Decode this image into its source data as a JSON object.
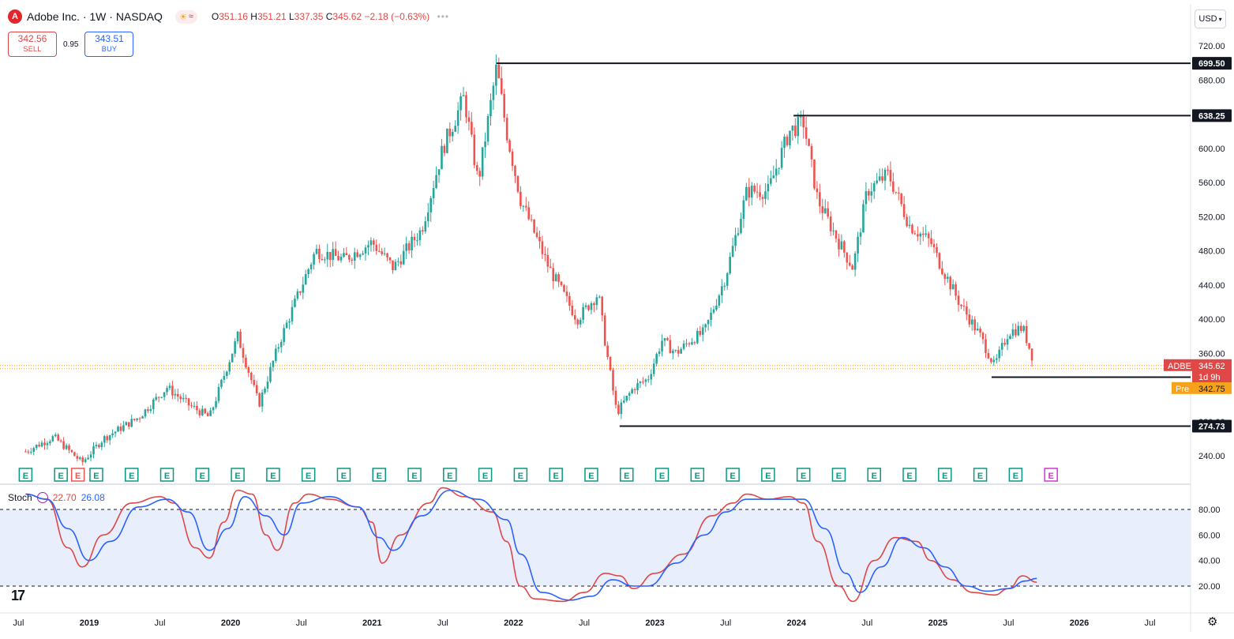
{
  "header": {
    "logo_letter": "A",
    "title": "Adobe Inc. · 1W · NASDAQ",
    "ohlc": {
      "o_label": "O",
      "o": "351.16",
      "h_label": "H",
      "h": "351.21",
      "l_label": "L",
      "l": "337.35",
      "c_label": "C",
      "c": "345.62",
      "change": "−2.18 (−0.63%)"
    }
  },
  "trade": {
    "sell_price": "342.56",
    "sell_label": "SELL",
    "spread": "0.95",
    "buy_price": "343.51",
    "buy_label": "BUY"
  },
  "currency": "USD",
  "stoch": {
    "name": "Stoch",
    "k": "22.70",
    "d": "26.08"
  },
  "colors": {
    "up": "#26a69a",
    "down": "#ef5350",
    "stoch_k": "#e04848",
    "stoch_d": "#2962ff",
    "band": "#e9eefc",
    "earnings": "#089981",
    "earnings_future": "#d633d6",
    "price_label": "#e04848",
    "pre_label": "#f7a21b"
  },
  "icons": {
    "earnings": "E",
    "logo": "tv-logo-icon",
    "settings": "gear-icon"
  },
  "chart_data": {
    "type": "candlestick",
    "title": "Adobe Inc. · 1W · NASDAQ",
    "price_axis": {
      "min": 220,
      "max": 730,
      "ticks": [
        240,
        280,
        320,
        360,
        400,
        440,
        480,
        520,
        560,
        600,
        640,
        680,
        720
      ]
    },
    "x_axis": {
      "start_year": 2018.55,
      "end_year": 2026.55,
      "labels": [
        {
          "t": 2018.5,
          "text": "Jul"
        },
        {
          "t": 2019.0,
          "text": "2019"
        },
        {
          "t": 2019.5,
          "text": "Jul"
        },
        {
          "t": 2020.0,
          "text": "2020"
        },
        {
          "t": 2020.5,
          "text": "Jul"
        },
        {
          "t": 2021.0,
          "text": "2021"
        },
        {
          "t": 2021.5,
          "text": "Jul"
        },
        {
          "t": 2022.0,
          "text": "2022"
        },
        {
          "t": 2022.5,
          "text": "Jul"
        },
        {
          "t": 2023.0,
          "text": "2023"
        },
        {
          "t": 2023.5,
          "text": "Jul"
        },
        {
          "t": 2024.0,
          "text": "2024"
        },
        {
          "t": 2024.5,
          "text": "Jul"
        },
        {
          "t": 2025.0,
          "text": "2025"
        },
        {
          "t": 2025.5,
          "text": "Jul"
        },
        {
          "t": 2026.0,
          "text": "2026"
        },
        {
          "t": 2026.5,
          "text": "Jul"
        }
      ]
    },
    "price_path": [
      [
        2018.55,
        245
      ],
      [
        2018.75,
        262
      ],
      [
        2018.95,
        232
      ],
      [
        2019.1,
        260
      ],
      [
        2019.35,
        285
      ],
      [
        2019.55,
        320
      ],
      [
        2019.7,
        300
      ],
      [
        2019.85,
        285
      ],
      [
        2020.05,
        380
      ],
      [
        2020.2,
        300
      ],
      [
        2020.35,
        375
      ],
      [
        2020.6,
        480
      ],
      [
        2020.8,
        470
      ],
      [
        2021.0,
        490
      ],
      [
        2021.15,
        460
      ],
      [
        2021.35,
        505
      ],
      [
        2021.5,
        600
      ],
      [
        2021.65,
        660
      ],
      [
        2021.75,
        560
      ],
      [
        2021.88,
        695
      ],
      [
        2021.95,
        620
      ],
      [
        2022.05,
        540
      ],
      [
        2022.25,
        460
      ],
      [
        2022.45,
        400
      ],
      [
        2022.6,
        430
      ],
      [
        2022.65,
        370
      ],
      [
        2022.73,
        290
      ],
      [
        2022.85,
        320
      ],
      [
        2022.95,
        330
      ],
      [
        2023.05,
        375
      ],
      [
        2023.15,
        360
      ],
      [
        2023.25,
        375
      ],
      [
        2023.35,
        385
      ],
      [
        2023.5,
        450
      ],
      [
        2023.65,
        550
      ],
      [
        2023.8,
        550
      ],
      [
        2023.95,
        620
      ],
      [
        2024.05,
        630
      ],
      [
        2024.15,
        540
      ],
      [
        2024.3,
        490
      ],
      [
        2024.4,
        460
      ],
      [
        2024.5,
        550
      ],
      [
        2024.65,
        570
      ],
      [
        2024.8,
        510
      ],
      [
        2024.95,
        490
      ],
      [
        2025.0,
        470
      ],
      [
        2025.15,
        420
      ],
      [
        2025.3,
        380
      ],
      [
        2025.4,
        345
      ],
      [
        2025.5,
        385
      ],
      [
        2025.6,
        390
      ],
      [
        2025.68,
        350
      ]
    ],
    "ohlc_last": {
      "open": 351.16,
      "high": 351.21,
      "low": 337.35,
      "close": 345.62,
      "change": -2.18,
      "change_pct": -0.63
    },
    "horizontal_levels": [
      {
        "price": 699.5,
        "label": "699.50",
        "start": 2021.88
      },
      {
        "price": 638.25,
        "label": "638.25",
        "start": 2023.98
      },
      {
        "price": 332.01,
        "label": "332.01",
        "start": 2025.38
      },
      {
        "price": 274.73,
        "label": "274.73",
        "start": 2022.75
      }
    ],
    "price_labels": {
      "symbol": "ADBE",
      "last": "345.62",
      "countdown": "1d 9h",
      "pre_tag": "Pre",
      "pre_value": "342.75"
    },
    "earnings_markers": [
      2018.55,
      2018.8,
      2019.05,
      2019.3,
      2019.55,
      2019.8,
      2020.05,
      2020.3,
      2020.55,
      2020.8,
      2021.05,
      2021.3,
      2021.55,
      2021.8,
      2022.05,
      2022.3,
      2022.55,
      2022.8,
      2023.05,
      2023.3,
      2023.55,
      2023.8,
      2024.05,
      2024.3,
      2024.55,
      2024.8,
      2025.05,
      2025.3,
      2025.55
    ],
    "earnings_highlight": [
      2018.92
    ],
    "earnings_future": [
      2025.8
    ],
    "stochastic": {
      "name": "Stoch",
      "k_last": 22.7,
      "d_last": 26.08,
      "axis": {
        "min": 0,
        "max": 100,
        "ticks": [
          20,
          40,
          60,
          80
        ]
      },
      "band": [
        20,
        80
      ],
      "k_path": [
        [
          2018.55,
          92
        ],
        [
          2018.7,
          88
        ],
        [
          2018.85,
          50
        ],
        [
          2018.95,
          35
        ],
        [
          2019.1,
          60
        ],
        [
          2019.3,
          85
        ],
        [
          2019.5,
          90
        ],
        [
          2019.6,
          85
        ],
        [
          2019.75,
          50
        ],
        [
          2019.85,
          42
        ],
        [
          2019.95,
          70
        ],
        [
          2020.05,
          95
        ],
        [
          2020.15,
          92
        ],
        [
          2020.25,
          60
        ],
        [
          2020.33,
          48
        ],
        [
          2020.45,
          85
        ],
        [
          2020.55,
          92
        ],
        [
          2020.7,
          88
        ],
        [
          2020.9,
          82
        ],
        [
          2021.0,
          70
        ],
        [
          2021.07,
          38
        ],
        [
          2021.2,
          60
        ],
        [
          2021.4,
          85
        ],
        [
          2021.5,
          97
        ],
        [
          2021.65,
          90
        ],
        [
          2021.85,
          78
        ],
        [
          2021.95,
          55
        ],
        [
          2022.05,
          20
        ],
        [
          2022.15,
          10
        ],
        [
          2022.35,
          8
        ],
        [
          2022.5,
          15
        ],
        [
          2022.65,
          30
        ],
        [
          2022.75,
          28
        ],
        [
          2022.85,
          18
        ],
        [
          2023.0,
          30
        ],
        [
          2023.2,
          45
        ],
        [
          2023.4,
          75
        ],
        [
          2023.55,
          85
        ],
        [
          2023.65,
          92
        ],
        [
          2023.8,
          88
        ],
        [
          2023.95,
          90
        ],
        [
          2024.05,
          85
        ],
        [
          2024.15,
          55
        ],
        [
          2024.3,
          20
        ],
        [
          2024.4,
          8
        ],
        [
          2024.55,
          40
        ],
        [
          2024.7,
          58
        ],
        [
          2024.85,
          55
        ],
        [
          2024.95,
          40
        ],
        [
          2025.1,
          25
        ],
        [
          2025.25,
          15
        ],
        [
          2025.4,
          13
        ],
        [
          2025.5,
          18
        ],
        [
          2025.6,
          28
        ],
        [
          2025.7,
          23
        ]
      ],
      "d_path": [
        [
          2018.55,
          92
        ],
        [
          2018.7,
          88
        ],
        [
          2018.85,
          65
        ],
        [
          2019.0,
          40
        ],
        [
          2019.15,
          55
        ],
        [
          2019.35,
          82
        ],
        [
          2019.55,
          88
        ],
        [
          2019.7,
          78
        ],
        [
          2019.85,
          48
        ],
        [
          2019.98,
          65
        ],
        [
          2020.1,
          90
        ],
        [
          2020.25,
          75
        ],
        [
          2020.38,
          60
        ],
        [
          2020.5,
          85
        ],
        [
          2020.7,
          90
        ],
        [
          2020.9,
          82
        ],
        [
          2021.05,
          58
        ],
        [
          2021.15,
          48
        ],
        [
          2021.35,
          75
        ],
        [
          2021.55,
          95
        ],
        [
          2021.75,
          88
        ],
        [
          2021.95,
          72
        ],
        [
          2022.05,
          45
        ],
        [
          2022.2,
          15
        ],
        [
          2022.4,
          9
        ],
        [
          2022.55,
          12
        ],
        [
          2022.7,
          25
        ],
        [
          2022.85,
          20
        ],
        [
          2022.95,
          20
        ],
        [
          2023.15,
          38
        ],
        [
          2023.35,
          60
        ],
        [
          2023.5,
          78
        ],
        [
          2023.65,
          88
        ],
        [
          2023.85,
          88
        ],
        [
          2024.05,
          88
        ],
        [
          2024.2,
          65
        ],
        [
          2024.35,
          30
        ],
        [
          2024.45,
          15
        ],
        [
          2024.6,
          35
        ],
        [
          2024.75,
          58
        ],
        [
          2024.9,
          50
        ],
        [
          2025.05,
          35
        ],
        [
          2025.2,
          20
        ],
        [
          2025.35,
          16
        ],
        [
          2025.5,
          18
        ],
        [
          2025.62,
          24
        ],
        [
          2025.7,
          26
        ]
      ]
    }
  }
}
